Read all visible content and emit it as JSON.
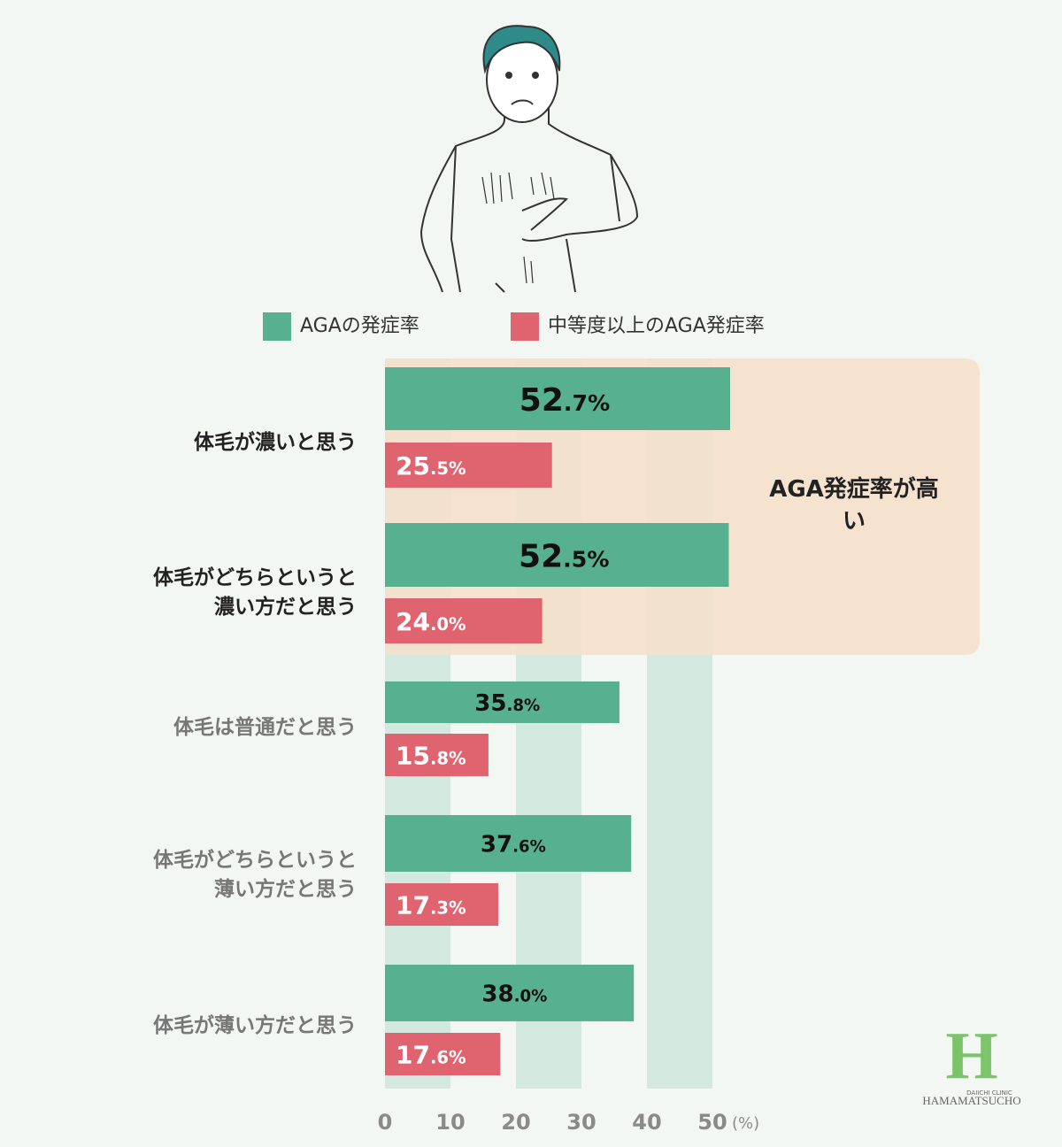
{
  "chart_data": {
    "type": "hbar",
    "annotation": "AGA発症率が高い",
    "categories": [
      "体毛が濃いと思う",
      "体毛がどちらというと濃い方だと思う",
      "体毛は普通だと思う",
      "体毛がどちらというと薄い方だと思う",
      "体毛が薄い方だと思う"
    ],
    "series": [
      {
        "name": "AGAの発症率",
        "color": "#57b08f",
        "values": [
          52.7,
          52.5,
          35.8,
          37.6,
          38.0
        ],
        "value_labels": [
          "52.7%",
          "52.5%",
          "35.8%",
          "37.6%",
          "38.0%"
        ]
      },
      {
        "name": "中等度以上のAGA発症率",
        "color": "#e06470",
        "values": [
          25.5,
          24.0,
          15.8,
          17.3,
          17.6
        ],
        "value_labels": [
          "25.5%",
          "24.0%",
          "15.8%",
          "17.3%",
          "17.6%"
        ]
      }
    ],
    "xlim": [
      0,
      50
    ],
    "xticks": [
      0,
      10,
      20,
      30,
      40,
      50
    ],
    "x_unit": "(%)",
    "logo": {
      "mark": "H",
      "clinic": "DAIICHI CLINIC",
      "name": "HAMAMATSUCHO"
    }
  }
}
